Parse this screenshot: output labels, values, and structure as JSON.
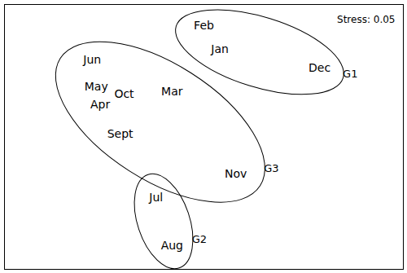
{
  "chart_data": {
    "type": "scatter",
    "annotation": "Stress: 0.05",
    "labels": [
      "Feb",
      "Jan",
      "Dec",
      "Jun",
      "May",
      "Apr",
      "Oct",
      "Mar",
      "Sept",
      "Nov",
      "Jul",
      "Aug"
    ],
    "x": [
      50,
      54,
      79,
      22,
      23,
      24,
      30,
      42,
      29,
      58,
      38,
      42
    ],
    "values": [
      92,
      83,
      76,
      79,
      69,
      62,
      66,
      67,
      51,
      36,
      27,
      9
    ],
    "xlim": [
      0,
      100
    ],
    "ylim": [
      0,
      100
    ],
    "tick_labels": false,
    "color": "#000000",
    "groups": [
      {
        "name": "G1",
        "members": [
          "Dec",
          "Jan",
          "Feb"
        ]
      },
      {
        "name": "G2",
        "members": [
          "Jul",
          "Aug"
        ]
      },
      {
        "name": "G3",
        "members": [
          "Jun",
          "May",
          "Apr",
          "Oct",
          "Mar",
          "Sept",
          "Nov"
        ]
      }
    ]
  }
}
